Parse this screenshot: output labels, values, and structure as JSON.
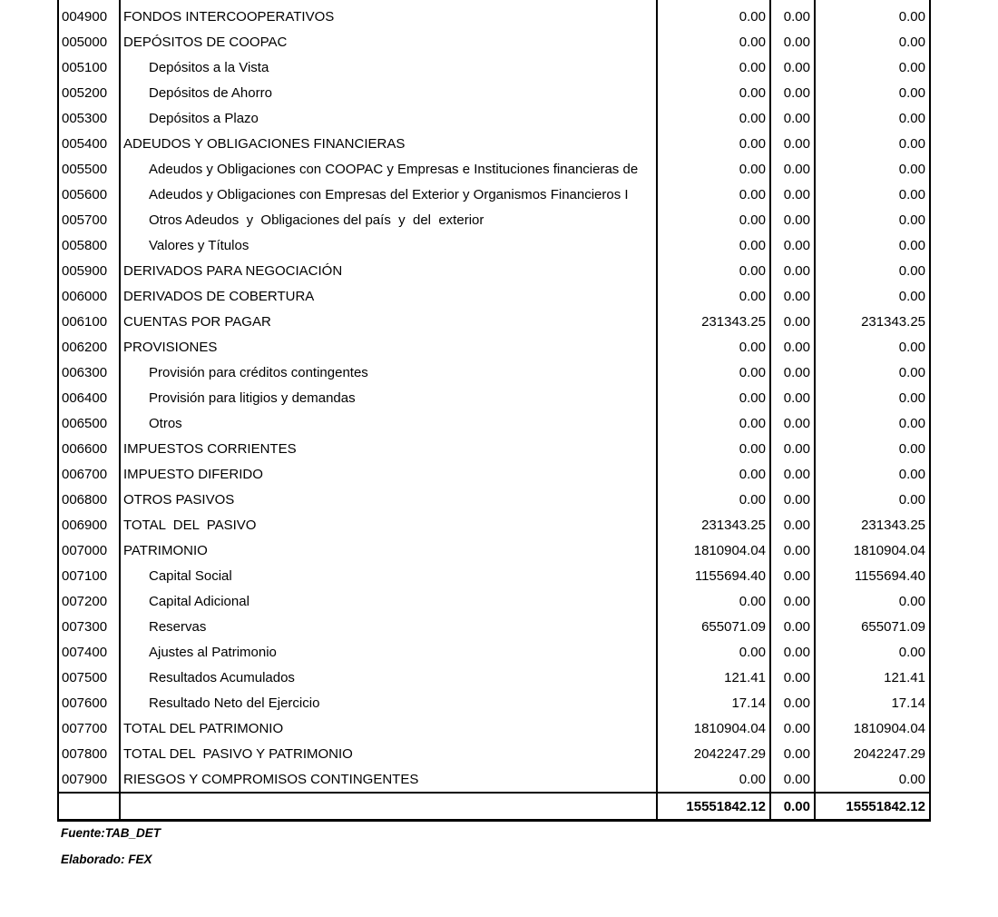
{
  "colors": {
    "background": "#ffffff",
    "text": "#000000",
    "border": "#000000"
  },
  "table": {
    "rows": [
      {
        "code": "004900",
        "desc": "FONDOS INTERCOOPERATIVOS",
        "indent": false,
        "v1": "0.00",
        "v2": "0.00",
        "v3": "0.00"
      },
      {
        "code": "005000",
        "desc": "DEPÓSITOS DE COOPAC",
        "indent": false,
        "v1": "0.00",
        "v2": "0.00",
        "v3": "0.00"
      },
      {
        "code": "005100",
        "desc": "Depósitos a la Vista",
        "indent": true,
        "v1": "0.00",
        "v2": "0.00",
        "v3": "0.00"
      },
      {
        "code": "005200",
        "desc": "Depósitos de Ahorro",
        "indent": true,
        "v1": "0.00",
        "v2": "0.00",
        "v3": "0.00"
      },
      {
        "code": "005300",
        "desc": "Depósitos a Plazo",
        "indent": true,
        "v1": "0.00",
        "v2": "0.00",
        "v3": "0.00"
      },
      {
        "code": "005400",
        "desc": "ADEUDOS Y OBLIGACIONES FINANCIERAS",
        "indent": false,
        "v1": "0.00",
        "v2": "0.00",
        "v3": "0.00"
      },
      {
        "code": "005500",
        "desc": "Adeudos y Obligaciones con COOPAC y Empresas e Instituciones financieras de",
        "indent": true,
        "v1": "0.00",
        "v2": "0.00",
        "v3": "0.00"
      },
      {
        "code": "005600",
        "desc": "Adeudos y Obligaciones con Empresas del Exterior y Organismos Financieros I",
        "indent": true,
        "v1": "0.00",
        "v2": "0.00",
        "v3": "0.00"
      },
      {
        "code": "005700",
        "desc": "Otros Adeudos  y  Obligaciones del país  y  del  exterior",
        "indent": true,
        "v1": "0.00",
        "v2": "0.00",
        "v3": "0.00"
      },
      {
        "code": "005800",
        "desc": "Valores y Títulos",
        "indent": true,
        "v1": "0.00",
        "v2": "0.00",
        "v3": "0.00"
      },
      {
        "code": "005900",
        "desc": "DERIVADOS PARA NEGOCIACIÓN",
        "indent": false,
        "v1": "0.00",
        "v2": "0.00",
        "v3": "0.00"
      },
      {
        "code": "006000",
        "desc": "DERIVADOS DE COBERTURA",
        "indent": false,
        "v1": "0.00",
        "v2": "0.00",
        "v3": "0.00"
      },
      {
        "code": "006100",
        "desc": "CUENTAS POR PAGAR",
        "indent": false,
        "v1": "231343.25",
        "v2": "0.00",
        "v3": "231343.25"
      },
      {
        "code": "006200",
        "desc": "PROVISIONES",
        "indent": false,
        "v1": "0.00",
        "v2": "0.00",
        "v3": "0.00"
      },
      {
        "code": "006300",
        "desc": "Provisión para créditos contingentes",
        "indent": true,
        "v1": "0.00",
        "v2": "0.00",
        "v3": "0.00"
      },
      {
        "code": "006400",
        "desc": "Provisión para litigios y demandas",
        "indent": true,
        "v1": "0.00",
        "v2": "0.00",
        "v3": "0.00"
      },
      {
        "code": "006500",
        "desc": "Otros",
        "indent": true,
        "v1": "0.00",
        "v2": "0.00",
        "v3": "0.00"
      },
      {
        "code": "006600",
        "desc": "IMPUESTOS CORRIENTES",
        "indent": false,
        "v1": "0.00",
        "v2": "0.00",
        "v3": "0.00"
      },
      {
        "code": "006700",
        "desc": "IMPUESTO DIFERIDO",
        "indent": false,
        "v1": "0.00",
        "v2": "0.00",
        "v3": "0.00"
      },
      {
        "code": "006800",
        "desc": "OTROS PASIVOS",
        "indent": false,
        "v1": "0.00",
        "v2": "0.00",
        "v3": "0.00"
      },
      {
        "code": "006900",
        "desc": "TOTAL  DEL  PASIVO",
        "indent": false,
        "v1": "231343.25",
        "v2": "0.00",
        "v3": "231343.25"
      },
      {
        "code": "007000",
        "desc": "PATRIMONIO",
        "indent": false,
        "v1": "1810904.04",
        "v2": "0.00",
        "v3": "1810904.04"
      },
      {
        "code": "007100",
        "desc": "Capital Social",
        "indent": true,
        "v1": "1155694.40",
        "v2": "0.00",
        "v3": "1155694.40"
      },
      {
        "code": "007200",
        "desc": "Capital Adicional",
        "indent": true,
        "v1": "0.00",
        "v2": "0.00",
        "v3": "0.00"
      },
      {
        "code": "007300",
        "desc": "Reservas",
        "indent": true,
        "v1": "655071.09",
        "v2": "0.00",
        "v3": "655071.09"
      },
      {
        "code": "007400",
        "desc": "Ajustes al Patrimonio",
        "indent": true,
        "v1": "0.00",
        "v2": "0.00",
        "v3": "0.00"
      },
      {
        "code": "007500",
        "desc": "Resultados Acumulados",
        "indent": true,
        "v1": "121.41",
        "v2": "0.00",
        "v3": "121.41"
      },
      {
        "code": "007600",
        "desc": "Resultado Neto del Ejercicio",
        "indent": true,
        "v1": "17.14",
        "v2": "0.00",
        "v3": "17.14"
      },
      {
        "code": "007700",
        "desc": "TOTAL DEL PATRIMONIO",
        "indent": false,
        "v1": "1810904.04",
        "v2": "0.00",
        "v3": "1810904.04"
      },
      {
        "code": "007800",
        "desc": "TOTAL DEL  PASIVO Y PATRIMONIO",
        "indent": false,
        "v1": "2042247.29",
        "v2": "0.00",
        "v3": "2042247.29"
      },
      {
        "code": "007900",
        "desc": "RIESGOS Y COMPROMISOS CONTINGENTES",
        "indent": false,
        "v1": "0.00",
        "v2": "0.00",
        "v3": "0.00"
      }
    ],
    "total": {
      "v1": "15551842.12",
      "v2": "0.00",
      "v3": "15551842.12"
    }
  },
  "footer": {
    "source": "Fuente:TAB_DET",
    "elaborated": "Elaborado: FEX"
  }
}
